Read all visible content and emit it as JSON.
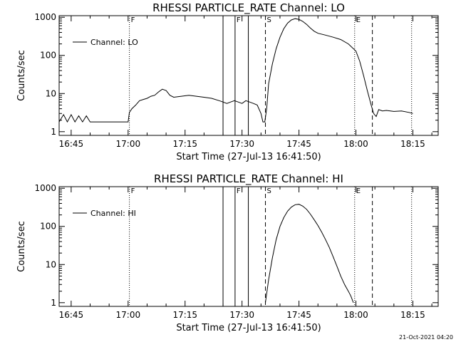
{
  "footer": {
    "timestamp": "21-Oct-2021 04:20"
  },
  "chart_data": [
    {
      "type": "line",
      "title": "RHESSI PARTICLE_RATE Channel: LO",
      "xlabel": "Start Time (27-Jul-13 16:41:50)",
      "ylabel": "Counts/sec",
      "y_scale": "log",
      "xlim": [
        "16:41:50",
        "18:21:40"
      ],
      "ylim": [
        0.8,
        1100
      ],
      "x_ticks": [
        "16:45",
        "17:00",
        "17:15",
        "17:30",
        "17:45",
        "18:00",
        "18:15"
      ],
      "y_ticks": [
        "1",
        "10",
        "100",
        "1000"
      ],
      "legend": {
        "label": "Channel: LO",
        "position": "top-left"
      },
      "markers": [
        {
          "time": "17:00:20",
          "label": "F",
          "style": "dotted"
        },
        {
          "time": "17:25:00",
          "label": "",
          "style": "solid"
        },
        {
          "time": "17:28:10",
          "label": "F",
          "style": "solid"
        },
        {
          "time": "17:31:40",
          "label": "",
          "style": "solid"
        },
        {
          "time": "17:36:10",
          "label": "S",
          "style": "dashed"
        },
        {
          "time": "17:59:40",
          "label": "E",
          "style": "dotted"
        },
        {
          "time": "18:04:20",
          "label": "",
          "style": "dashed"
        },
        {
          "time": "18:14:40",
          "label": "",
          "style": "dotted"
        }
      ],
      "series": [
        {
          "name": "Channel: LO",
          "x": [
            "16:41:50",
            "16:43:00",
            "16:44:00",
            "16:45:00",
            "16:46:00",
            "16:47:00",
            "16:48:00",
            "16:49:00",
            "16:50:00",
            "16:52:00",
            "16:54:00",
            "16:56:00",
            "16:58:00",
            "17:00:00",
            "17:00:20",
            "17:01:00",
            "17:02:00",
            "17:03:00",
            "17:04:00",
            "17:05:00",
            "17:06:00",
            "17:07:00",
            "17:08:00",
            "17:09:00",
            "17:10:00",
            "17:11:00",
            "17:12:00",
            "17:14:00",
            "17:16:00",
            "17:18:00",
            "17:20:00",
            "17:22:00",
            "17:24:00",
            "17:25:00",
            "17:26:00",
            "17:27:00",
            "17:28:00",
            "17:29:00",
            "17:30:00",
            "17:31:00",
            "17:32:00",
            "17:33:00",
            "17:34:00",
            "17:35:00",
            "17:35:30",
            "17:36:00",
            "17:36:30",
            "17:37:00",
            "17:38:00",
            "17:39:00",
            "17:40:00",
            "17:41:00",
            "17:42:00",
            "17:43:00",
            "17:44:00",
            "17:45:00",
            "17:46:00",
            "17:47:00",
            "17:48:00",
            "17:49:00",
            "17:50:00",
            "17:52:00",
            "17:54:00",
            "17:56:00",
            "17:58:00",
            "18:00:00",
            "18:01:00",
            "18:02:00",
            "18:03:00",
            "18:04:00",
            "18:04:40",
            "18:05:20",
            "18:06:00",
            "18:07:00",
            "18:08:00",
            "18:10:00",
            "18:12:00",
            "18:14:00",
            "18:15:00"
          ],
          "y": [
            1.8,
            2.8,
            1.8,
            2.8,
            1.8,
            2.6,
            1.8,
            2.6,
            1.8,
            1.8,
            1.8,
            1.8,
            1.8,
            1.8,
            3.2,
            4.0,
            5.0,
            6.5,
            7.0,
            7.5,
            8.5,
            9.0,
            11,
            13,
            12,
            9.0,
            8.0,
            8.5,
            9.0,
            8.5,
            8.0,
            7.5,
            6.5,
            6.0,
            5.5,
            6.0,
            6.5,
            6.0,
            5.5,
            6.5,
            6.0,
            5.5,
            5.0,
            3.0,
            1.8,
            1.8,
            4.0,
            18,
            60,
            150,
            300,
            500,
            700,
            850,
            920,
            880,
            780,
            650,
            520,
            430,
            380,
            340,
            300,
            260,
            200,
            130,
            70,
            30,
            12,
            5,
            3,
            2.5,
            3.8,
            3.5,
            3.6,
            3.4,
            3.5,
            3.2,
            3.0
          ]
        }
      ]
    },
    {
      "type": "line",
      "title": "RHESSI PARTICLE_RATE Channel: HI",
      "xlabel": "Start Time (27-Jul-13 16:41:50)",
      "ylabel": "Counts/sec",
      "y_scale": "log",
      "xlim": [
        "16:41:50",
        "18:21:40"
      ],
      "ylim": [
        0.8,
        1100
      ],
      "x_ticks": [
        "16:45",
        "17:00",
        "17:15",
        "17:30",
        "17:45",
        "18:00",
        "18:15"
      ],
      "y_ticks": [
        "1",
        "10",
        "100",
        "1000"
      ],
      "legend": {
        "label": "Channel: HI",
        "position": "top-left"
      },
      "markers": [
        {
          "time": "17:00:20",
          "label": "F",
          "style": "dotted"
        },
        {
          "time": "17:25:00",
          "label": "",
          "style": "solid"
        },
        {
          "time": "17:28:10",
          "label": "F",
          "style": "solid"
        },
        {
          "time": "17:31:40",
          "label": "",
          "style": "solid"
        },
        {
          "time": "17:36:10",
          "label": "S",
          "style": "dashed"
        },
        {
          "time": "17:59:40",
          "label": "E",
          "style": "dotted"
        },
        {
          "time": "18:04:20",
          "label": "",
          "style": "dashed"
        },
        {
          "time": "18:14:40",
          "label": "",
          "style": "dotted"
        }
      ],
      "series": [
        {
          "name": "Channel: HI",
          "x": [
            "17:36:10",
            "17:37:00",
            "17:38:00",
            "17:39:00",
            "17:40:00",
            "17:41:00",
            "17:42:00",
            "17:43:00",
            "17:44:00",
            "17:45:00",
            "17:46:00",
            "17:47:00",
            "17:48:00",
            "17:49:00",
            "17:50:00",
            "17:51:00",
            "17:52:00",
            "17:53:00",
            "17:54:00",
            "17:55:00",
            "17:56:00",
            "17:57:00",
            "17:58:00",
            "17:58:40",
            "17:59:20"
          ],
          "y": [
            1.0,
            4.0,
            15,
            45,
            100,
            170,
            250,
            320,
            370,
            380,
            340,
            280,
            210,
            150,
            105,
            70,
            45,
            28,
            16,
            9,
            5,
            3,
            2,
            1.5,
            1.0
          ]
        }
      ]
    }
  ]
}
